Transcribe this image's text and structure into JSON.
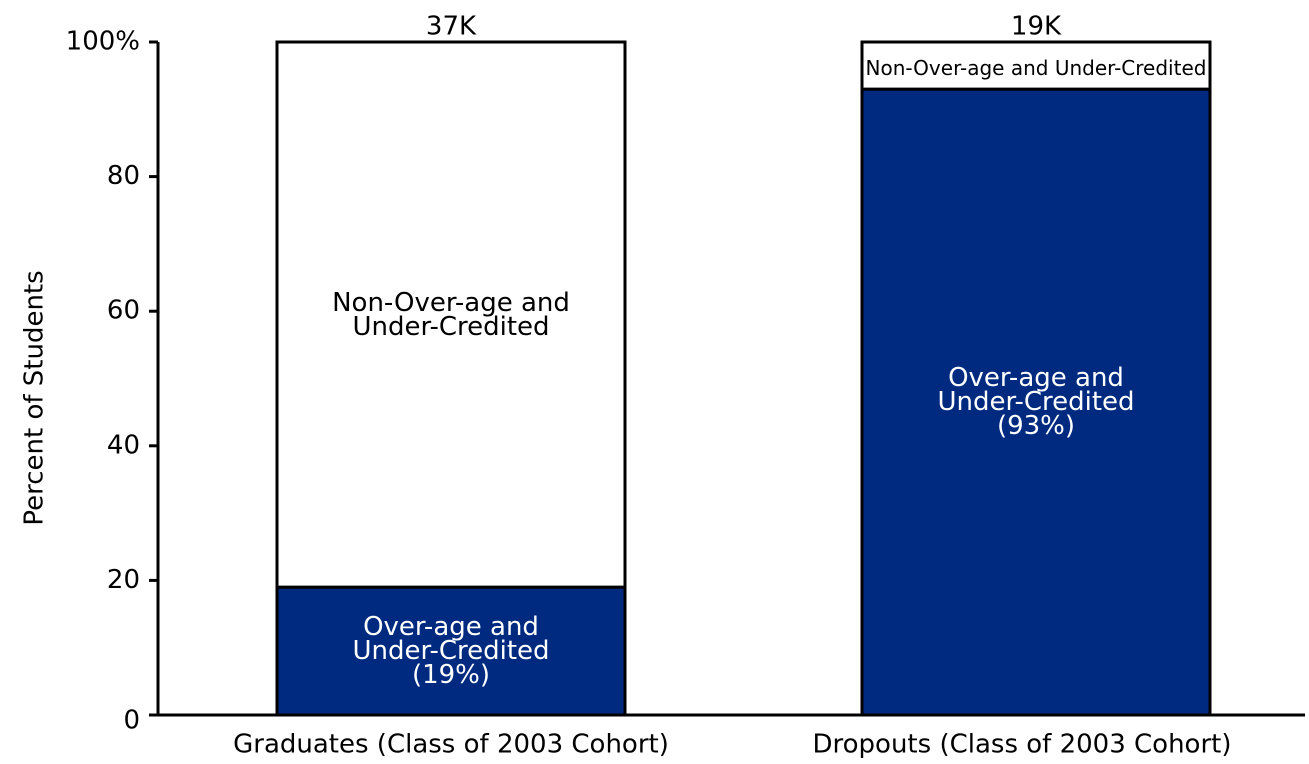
{
  "chart_data": {
    "type": "stacked_bar",
    "y_label": "Percent of Students",
    "categories": [
      "Graduates (Class of 2003 Cohort)",
      "Dropouts (Class of 2003 Cohort)"
    ],
    "series": [
      {
        "name": "Over-age and Under-Credited",
        "color": "#002a7f",
        "values": [
          19,
          93
        ],
        "value_labels": [
          "(19%)",
          "(93%)"
        ]
      },
      {
        "name": "Non-Over-age and Under-Credited",
        "color": "#ffffff",
        "values": [
          81,
          7
        ]
      }
    ],
    "totals": {
      "values": [
        37000,
        19000
      ],
      "value_labels": [
        "37K",
        "19K"
      ]
    },
    "ylim": [
      0,
      100
    ],
    "yticks": [
      0,
      20,
      40,
      60,
      80,
      {
        "value": 100,
        "label": "100%"
      }
    ]
  }
}
